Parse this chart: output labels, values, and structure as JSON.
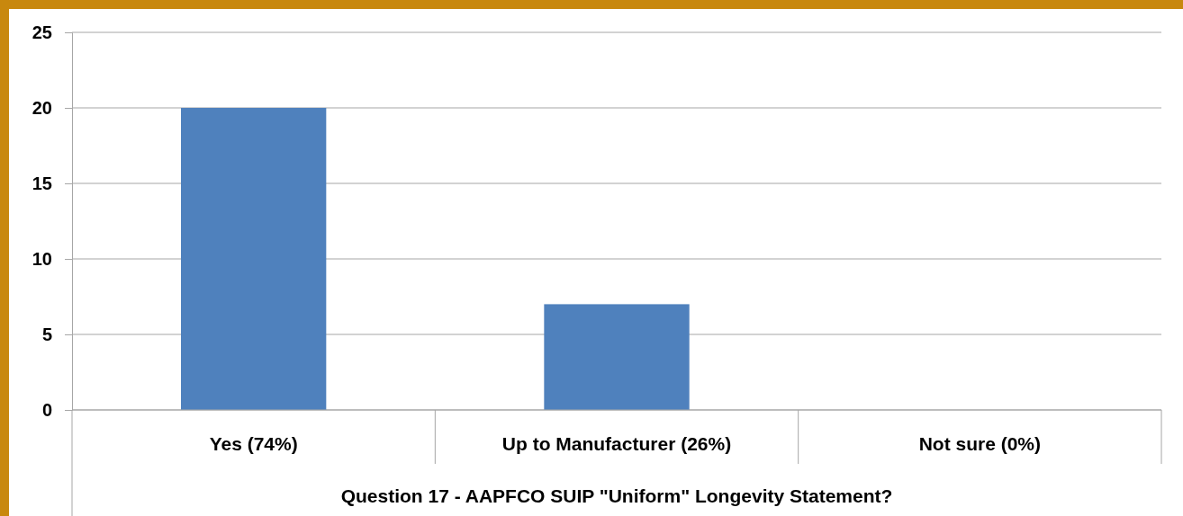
{
  "chart_data": {
    "type": "bar",
    "xlabel": "Question 17 - AAPFCO SUIP \"Uniform\" Longevity Statement?",
    "categories": [
      "Yes (74%)",
      "Up to Manufacturer (26%)",
      "Not sure (0%)"
    ],
    "values": [
      20,
      7,
      0
    ],
    "color": "#4f81bd",
    "ylim": [
      0,
      25
    ],
    "yticks": [
      0,
      5,
      10,
      15,
      20,
      25
    ],
    "grid": "y"
  }
}
